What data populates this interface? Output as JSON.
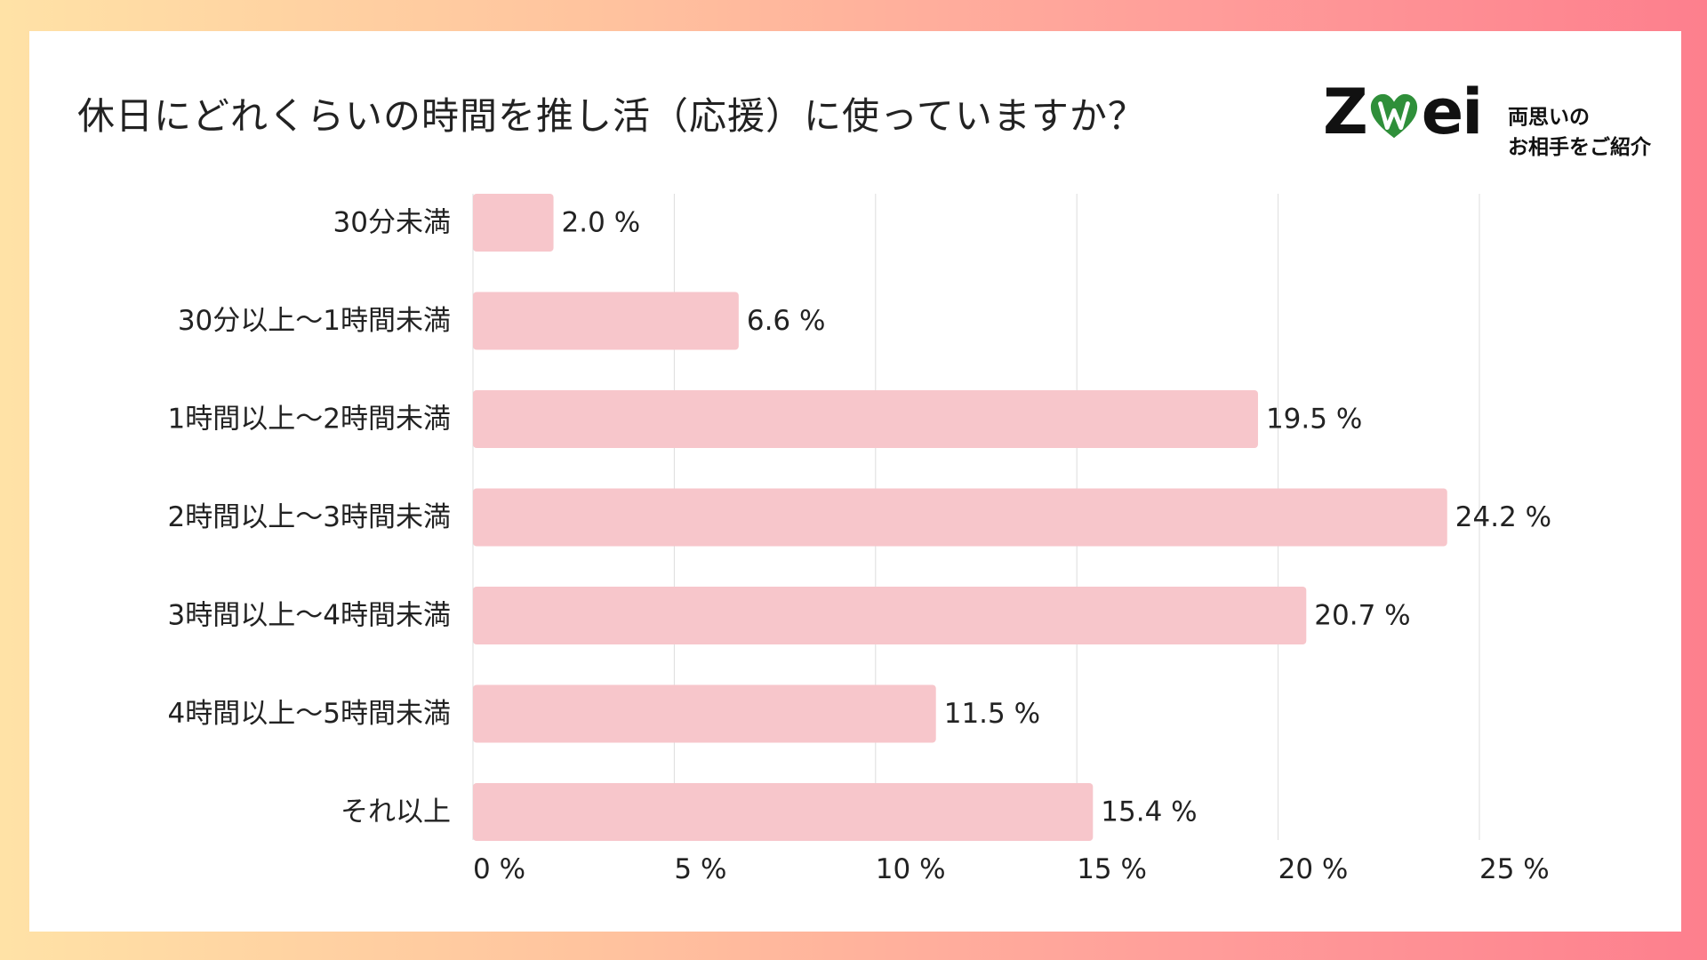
{
  "title": "休日にどれくらいの時間を推し活（応援）に使っていますか？",
  "logo": {
    "word_left": "Z",
    "word_right": "ei",
    "tagline_line1": "両思いの",
    "tagline_line2": "お相手をご紹介"
  },
  "colors": {
    "bar": "#f7c6cb",
    "grid": "#dddddd",
    "logo_heart": "#2f8f3a"
  },
  "chart_data": {
    "type": "bar",
    "orientation": "horizontal",
    "title": "休日にどれくらいの時間を推し活（応援）に使っていますか？",
    "categories": [
      "30分未満",
      "30分以上～1時間未満",
      "1時間以上～2時間未満",
      "2時間以上～3時間未満",
      "3時間以上～4時間未満",
      "4時間以上～5時間未満",
      "それ以上"
    ],
    "values": [
      2.0,
      6.6,
      19.5,
      24.2,
      20.7,
      11.5,
      15.4
    ],
    "value_labels": [
      "2.0 %",
      "6.6 %",
      "19.5 %",
      "24.2 %",
      "20.7 %",
      "11.5 %",
      "15.4 %"
    ],
    "xlim": [
      0,
      25
    ],
    "xticks": [
      0,
      5,
      10,
      15,
      20,
      25
    ],
    "xtick_labels": [
      "0 %",
      "5 %",
      "10 %",
      "15 %",
      "20 %",
      "25 %"
    ],
    "grid": "vertical",
    "legend": "none",
    "xlabel": "",
    "ylabel": ""
  }
}
